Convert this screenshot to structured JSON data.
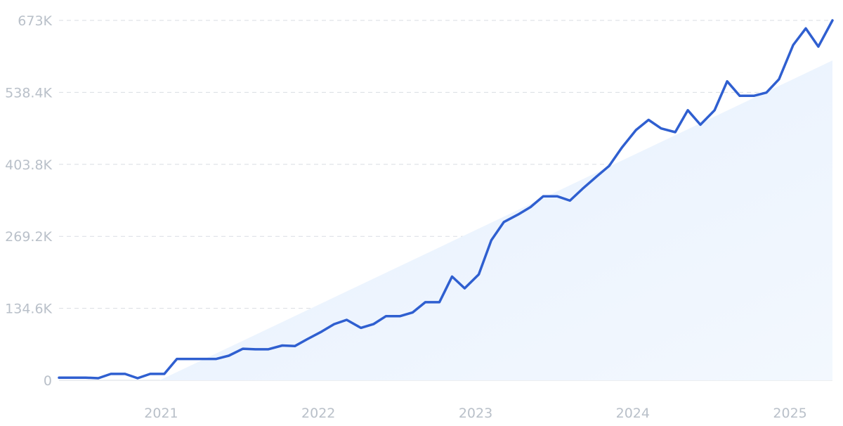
{
  "chart_data": {
    "type": "line",
    "title": "",
    "xlabel": "",
    "ylabel": "",
    "y_ticks": [
      "0",
      "134.6K",
      "269.2K",
      "403.8K",
      "538.4K",
      "673K"
    ],
    "y_tick_values": [
      0,
      134600,
      269200,
      403800,
      538400,
      673000
    ],
    "x_ticks": [
      "2021",
      "2022",
      "2023",
      "2024",
      "2025"
    ],
    "x_tick_values": [
      2021.0,
      2022.0,
      2023.0,
      2024.0,
      2025.0
    ],
    "xlim": [
      2020.35,
      2025.27
    ],
    "ylim": [
      0,
      673000
    ],
    "grid": true,
    "trend_area": {
      "x": [
        2020.99,
        2025.27
      ],
      "y": [
        0,
        598000
      ]
    },
    "colors": {
      "line": "#2f5fd0",
      "trend_fill": "#e6f0fd",
      "grid": "#d9dde3",
      "tick_text": "#b9c0c9"
    },
    "series": [
      {
        "x": [
          2020.35,
          2020.43,
          2020.52,
          2020.6,
          2020.68,
          2020.77,
          2020.85,
          2020.93,
          2021.02,
          2021.1,
          2021.18,
          2021.27,
          2021.35,
          2021.43,
          2021.52,
          2021.6,
          2021.68,
          2021.77,
          2021.85,
          2021.93,
          2022.02,
          2022.1,
          2022.18,
          2022.27,
          2022.35,
          2022.43,
          2022.52,
          2022.6,
          2022.68,
          2022.77,
          2022.85,
          2022.93,
          2023.02,
          2023.1,
          2023.18,
          2023.27,
          2023.35,
          2023.43,
          2023.52,
          2023.6,
          2023.68,
          2023.77,
          2023.85,
          2023.93,
          2024.02,
          2024.1,
          2024.18,
          2024.27,
          2024.35,
          2024.43,
          2024.52,
          2024.6,
          2024.68,
          2024.77,
          2024.85,
          2024.93,
          2025.02,
          2025.1,
          2025.18,
          2025.27
        ],
        "y": [
          5000,
          5000,
          5000,
          4000,
          12000,
          12000,
          4000,
          12000,
          12000,
          40000,
          40000,
          40000,
          40000,
          46000,
          59000,
          58000,
          58000,
          65000,
          64000,
          77000,
          91000,
          105000,
          113000,
          98000,
          105000,
          120000,
          120000,
          127000,
          146000,
          146000,
          194000,
          172000,
          198000,
          262000,
          296000,
          310000,
          324000,
          344000,
          344000,
          336000,
          358000,
          381000,
          401000,
          435000,
          468000,
          487000,
          471000,
          464000,
          505000,
          478000,
          505000,
          559000,
          532000,
          532000,
          538000,
          563000,
          627000,
          658000,
          624000,
          673000
        ]
      }
    ]
  }
}
